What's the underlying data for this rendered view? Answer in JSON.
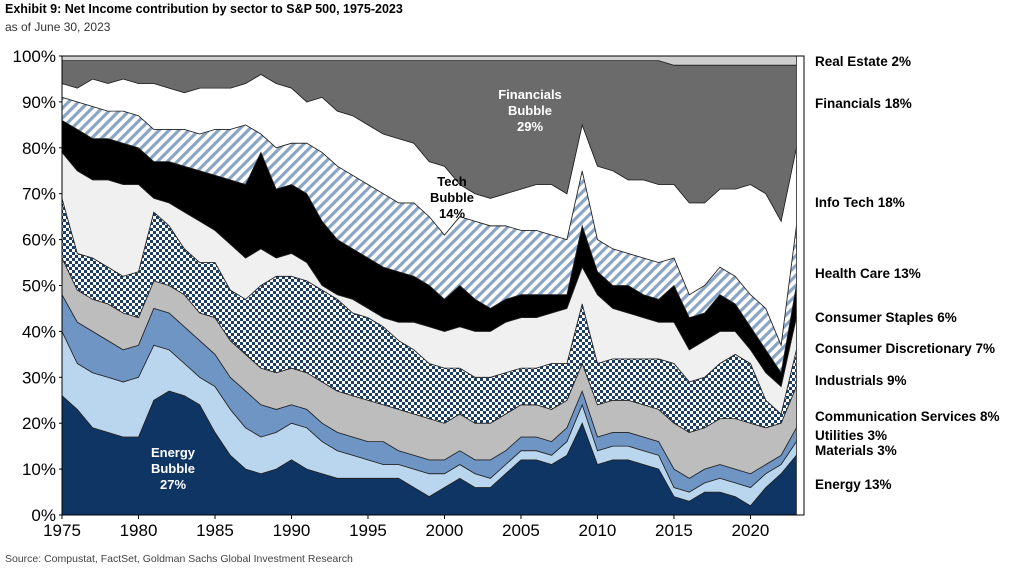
{
  "header": {
    "title": "Exhibit 9: Net Income contribution by sector to S&P 500, 1975-2023",
    "subtitle": "as of June 30, 2023"
  },
  "footer": {
    "source": "Source: Compustat, FactSet, Goldman Sachs Global Investment Research"
  },
  "colors": {
    "energy": "#0f3564",
    "materials": "#b9d6ee",
    "utilities": "#6f95c4",
    "communication": "#bdbdbd",
    "industrials_check": "#1c3f63",
    "discretionary": "#f0f0f0",
    "staples": "#000000",
    "healthcare_hatch": "#8aa4c4",
    "infotech": "#ffffff",
    "financials": "#6b6b6b",
    "realestate": "#cfcfcf"
  },
  "chart_data": {
    "type": "area",
    "stacked": true,
    "title": "Exhibit 9: Net Income contribution by sector to S&P 500, 1975-2023",
    "xlim": [
      1975,
      2023.5
    ],
    "ylim": [
      0,
      100
    ],
    "yticks": [
      "0%",
      "10%",
      "20%",
      "30%",
      "40%",
      "50%",
      "60%",
      "70%",
      "80%",
      "90%",
      "100%"
    ],
    "xticks": [
      "1975",
      "1980",
      "1985",
      "1990",
      "1995",
      "2000",
      "2005",
      "2010",
      "2015",
      "2020"
    ],
    "x": [
      1975,
      1976,
      1977,
      1978,
      1979,
      1980,
      1981,
      1982,
      1983,
      1984,
      1985,
      1986,
      1987,
      1988,
      1989,
      1990,
      1991,
      1992,
      1993,
      1994,
      1995,
      1996,
      1997,
      1998,
      1999,
      2000,
      2001,
      2002,
      2003,
      2004,
      2005,
      2006,
      2007,
      2008,
      2009,
      2010,
      2011,
      2012,
      2013,
      2014,
      2015,
      2016,
      2017,
      2018,
      2019,
      2020,
      2021,
      2022,
      2023
    ],
    "cumulative_boundaries": [
      {
        "name": "Energy",
        "top": [
          26,
          23,
          19,
          18,
          17,
          17,
          25,
          27,
          26,
          24,
          18,
          13,
          10,
          9,
          10,
          12,
          10,
          9,
          8,
          8,
          8,
          8,
          8,
          6,
          4,
          6,
          8,
          6,
          6,
          9,
          12,
          12,
          11,
          13,
          20,
          11,
          12,
          12,
          11,
          10,
          4,
          3,
          5,
          5,
          4,
          2,
          6,
          9,
          13
        ]
      },
      {
        "name": "Materials",
        "top": [
          40,
          33,
          31,
          30,
          29,
          30,
          37,
          36,
          33,
          30,
          28,
          23,
          19,
          17,
          18,
          20,
          19,
          16,
          14,
          13,
          12,
          11,
          11,
          10,
          9,
          9,
          11,
          9,
          8,
          11,
          14,
          14,
          13,
          16,
          24,
          14,
          15,
          15,
          14,
          13,
          6,
          5,
          7,
          8,
          7,
          6,
          9,
          11,
          16
        ]
      },
      {
        "name": "Utilities",
        "top": [
          48,
          42,
          40,
          38,
          36,
          37,
          45,
          44,
          41,
          38,
          35,
          30,
          27,
          24,
          23,
          24,
          23,
          20,
          18,
          17,
          16,
          16,
          14,
          13,
          12,
          12,
          14,
          12,
          12,
          14,
          17,
          17,
          16,
          19,
          27,
          17,
          18,
          18,
          17,
          16,
          10,
          8,
          10,
          11,
          10,
          9,
          11,
          13,
          19
        ]
      },
      {
        "name": "Communication Services",
        "top": [
          56,
          49,
          47,
          46,
          44,
          43,
          51,
          50,
          48,
          44,
          43,
          38,
          35,
          32,
          31,
          32,
          31,
          29,
          27,
          26,
          25,
          24,
          23,
          22,
          21,
          20,
          22,
          20,
          20,
          22,
          24,
          24,
          23,
          25,
          33,
          24,
          25,
          25,
          24,
          23,
          20,
          18,
          19,
          21,
          21,
          20,
          19,
          20,
          28
        ]
      },
      {
        "name": "Industrials",
        "top": [
          69,
          57,
          56,
          54,
          52,
          53,
          66,
          63,
          58,
          55,
          55,
          49,
          47,
          50,
          52,
          52,
          51,
          49,
          47,
          44,
          43,
          41,
          38,
          36,
          33,
          32,
          32,
          30,
          30,
          31,
          32,
          32,
          33,
          33,
          46,
          33,
          34,
          34,
          34,
          34,
          33,
          29,
          30,
          33,
          35,
          33,
          25,
          22,
          36
        ]
      },
      {
        "name": "Consumer Discretionary",
        "top": [
          79,
          75,
          73,
          73,
          72,
          72,
          69,
          68,
          66,
          64,
          62,
          59,
          56,
          58,
          56,
          57,
          55,
          50,
          48,
          47,
          45,
          43,
          42,
          42,
          41,
          40,
          41,
          40,
          40,
          42,
          43,
          43,
          44,
          45,
          54,
          48,
          45,
          44,
          43,
          42,
          42,
          36,
          38,
          40,
          40,
          36,
          31,
          28,
          43
        ]
      },
      {
        "name": "Consumer Staples",
        "top": [
          86,
          84,
          82,
          82,
          81,
          80,
          77,
          77,
          76,
          75,
          74,
          73,
          72,
          79,
          71,
          72,
          70,
          64,
          60,
          58,
          56,
          54,
          53,
          52,
          50,
          47,
          50,
          47,
          45,
          47,
          48,
          48,
          48,
          48,
          63,
          53,
          50,
          50,
          48,
          47,
          50,
          43,
          44,
          48,
          46,
          41,
          36,
          31,
          50
        ]
      },
      {
        "name": "Health Care",
        "top": [
          91,
          90,
          89,
          88,
          88,
          87,
          84,
          84,
          84,
          83,
          84,
          84,
          85,
          83,
          80,
          81,
          81,
          79,
          76,
          74,
          72,
          70,
          68,
          68,
          65,
          61,
          65,
          64,
          63,
          63,
          62,
          62,
          61,
          60,
          75,
          60,
          58,
          57,
          56,
          55,
          56,
          48,
          50,
          54,
          52,
          48,
          45,
          37,
          63
        ]
      },
      {
        "name": "Info Tech",
        "top": [
          94,
          93,
          95,
          94,
          95,
          94,
          94,
          93,
          92,
          93,
          93,
          93,
          94,
          96,
          94,
          93,
          90,
          91,
          88,
          87,
          85,
          83,
          82,
          81,
          77,
          76,
          72,
          70,
          69,
          70,
          71,
          72,
          72,
          70,
          85,
          76,
          75,
          73,
          73,
          72,
          72,
          68,
          68,
          71,
          71,
          72,
          70,
          64,
          80
        ]
      },
      {
        "name": "Financials",
        "top": [
          99,
          99,
          99,
          99,
          99,
          99,
          99,
          99,
          99,
          99,
          99,
          99,
          99,
          99,
          99,
          99,
          99,
          99,
          99,
          99,
          99,
          99,
          99,
          99,
          99,
          99,
          99,
          99,
          99,
          99,
          99,
          99,
          99,
          99,
          99,
          99,
          99,
          99,
          99,
          99,
          98,
          98,
          98,
          98,
          98,
          98,
          98,
          98,
          98
        ]
      },
      {
        "name": "Real Estate",
        "top": [
          100,
          100,
          100,
          100,
          100,
          100,
          100,
          100,
          100,
          100,
          100,
          100,
          100,
          100,
          100,
          100,
          100,
          100,
          100,
          100,
          100,
          100,
          100,
          100,
          100,
          100,
          100,
          100,
          100,
          100,
          100,
          100,
          100,
          100,
          100,
          100,
          100,
          100,
          100,
          100,
          100,
          100,
          100,
          100,
          100,
          100,
          100,
          100,
          100
        ]
      }
    ],
    "legend_labels": [
      {
        "key": "realestate",
        "text": "Real Estate 2%",
        "value": 2
      },
      {
        "key": "financials",
        "text": "Financials 18%",
        "value": 18
      },
      {
        "key": "infotech",
        "text": "Info Tech 18%",
        "value": 18
      },
      {
        "key": "healthcare",
        "text": "Health Care 13%",
        "value": 13
      },
      {
        "key": "staples",
        "text": "Consumer Staples 6%",
        "value": 6
      },
      {
        "key": "discretionary",
        "text": "Consumer Discretionary 7%",
        "value": 7
      },
      {
        "key": "industrials",
        "text": "Industrials 9%",
        "value": 9
      },
      {
        "key": "communication",
        "text": "Communication Services 8%",
        "value": 8
      },
      {
        "key": "utilities",
        "text": "Utilities 3%",
        "value": 3
      },
      {
        "key": "materials",
        "text": "Materials 3%",
        "value": 3
      },
      {
        "key": "energy",
        "text": "Energy 13%",
        "value": 13
      }
    ],
    "annotations": [
      {
        "key": "financials_bubble",
        "lines": [
          "Financials",
          "Bubble",
          "29%"
        ]
      },
      {
        "key": "tech_bubble",
        "lines": [
          "Tech",
          "Bubble",
          "14%"
        ]
      },
      {
        "key": "energy_bubble",
        "lines": [
          "Energy",
          "Bubble",
          "27%"
        ]
      }
    ]
  }
}
